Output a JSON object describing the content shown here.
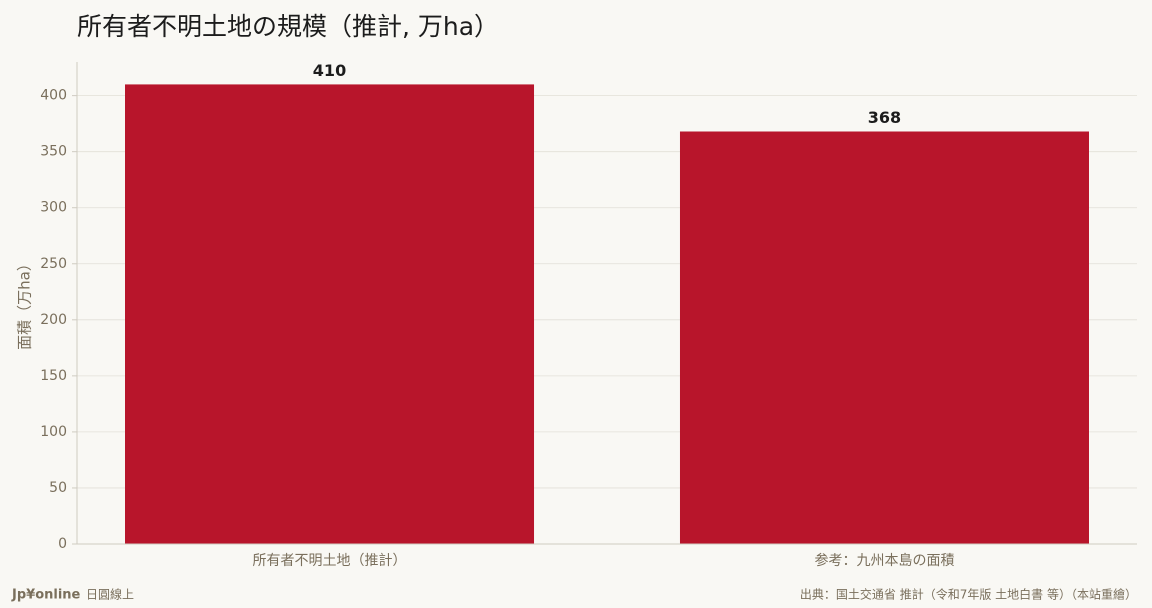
{
  "chart_data": {
    "type": "bar",
    "title": "所有者不明土地の規模（推計, 万ha）",
    "y_label": "面積（万ha）",
    "categories": [
      "所有者不明土地（推計）",
      "参考：九州本島の面積"
    ],
    "values": [
      410,
      368
    ],
    "color": "#b8152b",
    "ylim": [
      0,
      430
    ],
    "yticks": [
      0,
      50,
      100,
      150,
      200,
      250,
      300,
      350,
      400
    ],
    "grid": true
  },
  "footer": {
    "brand": "Jp¥online",
    "brand_sub": "日圓線上",
    "source": "出典：国土交通省 推計（令和7年版 土地白書 等）（本站重繪）"
  }
}
